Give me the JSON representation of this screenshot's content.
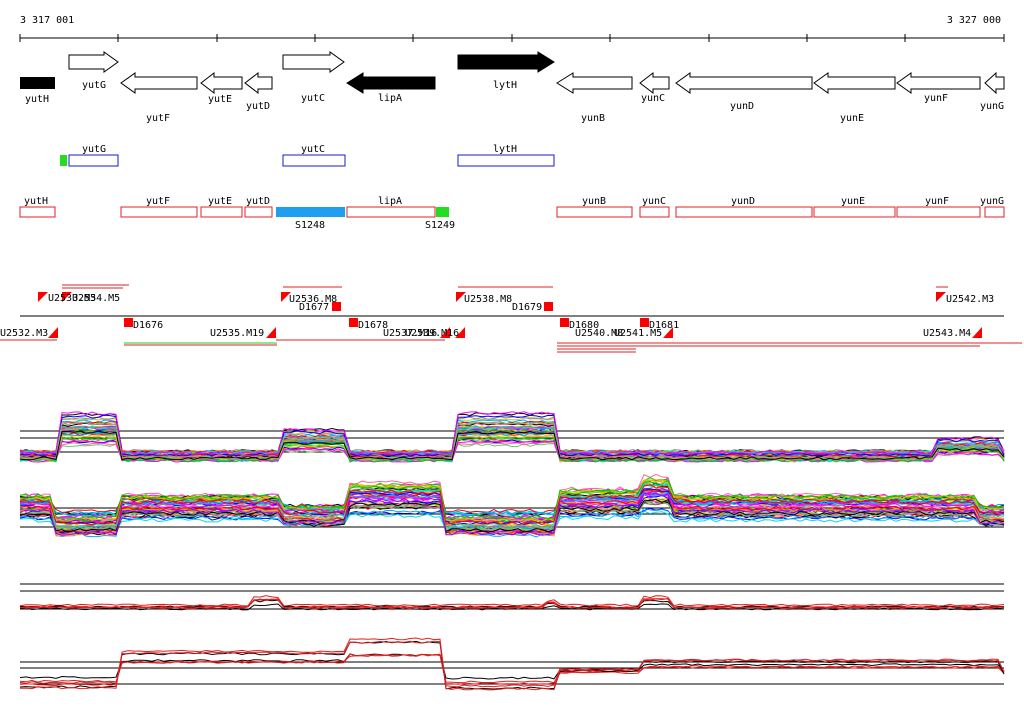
{
  "coordinates": {
    "start": "3 317 001",
    "end": "3 327 000"
  },
  "genes_top": [
    {
      "name": "yutH",
      "dir": "right",
      "fill": "black"
    },
    {
      "name": "yutG",
      "dir": "right",
      "fill": "white"
    },
    {
      "name": "yutF",
      "dir": "left",
      "fill": "white"
    },
    {
      "name": "yutE",
      "dir": "left",
      "fill": "white"
    },
    {
      "name": "yutD",
      "dir": "left",
      "fill": "white"
    },
    {
      "name": "yutC",
      "dir": "right",
      "fill": "white"
    },
    {
      "name": "lipA",
      "dir": "left",
      "fill": "black"
    },
    {
      "name": "lytH",
      "dir": "right",
      "fill": "black"
    },
    {
      "name": "yunB",
      "dir": "left",
      "fill": "white"
    },
    {
      "name": "yunC",
      "dir": "left",
      "fill": "white"
    },
    {
      "name": "yunD",
      "dir": "left",
      "fill": "white"
    },
    {
      "name": "yunE",
      "dir": "left",
      "fill": "white"
    },
    {
      "name": "yunF",
      "dir": "left",
      "fill": "white"
    },
    {
      "name": "yunG",
      "dir": "left",
      "fill": "white"
    }
  ],
  "blue_boxes": [
    "yutG",
    "yutC",
    "lytH"
  ],
  "red_boxes": [
    "yutH",
    "yutF",
    "yutE",
    "yutD",
    "lipA",
    "yunB",
    "yunC",
    "yunD",
    "yunE",
    "yunF",
    "yunG"
  ],
  "special_features": [
    "S1248",
    "S1249"
  ],
  "segments_upper": [
    "U2533.M5",
    "U2534.M5",
    "U2536.M8",
    "D1677",
    "U2538.M8",
    "D1679",
    "U2542.M3"
  ],
  "segments_lower": [
    "U2532.M3",
    "D1676",
    "U2535.M19",
    "D1678",
    "U2537.M16",
    "U2539.M16",
    "D1680",
    "U2540.M8",
    "U2541.M5",
    "D1681",
    "U2543.M4"
  ],
  "colors": {
    "gene_fill": "#000000",
    "blue_box": "#1a1acc",
    "red_box": "#e02020",
    "cyan_feature": "#1ea0ee",
    "green_feature": "#22dd22",
    "segment_marker": "#ff0000"
  }
}
